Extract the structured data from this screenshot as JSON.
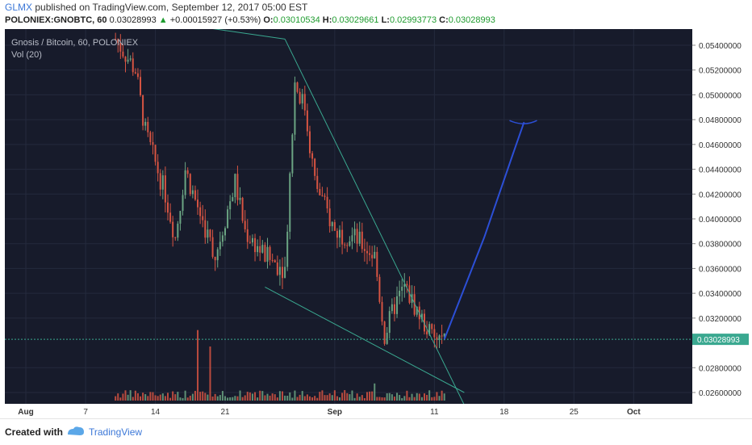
{
  "header": {
    "username": "GLMX",
    "published_text": "published on TradingView.com, September 12, 2017 05:00 EST",
    "symbol": "POLONIEX:GNOBTC, 60",
    "last": "0.03028993",
    "change_arrow": "▲",
    "change": "+0.00015927 (+0.53%)",
    "o_label": "O:",
    "o_value": "0.03010534",
    "h_label": "H:",
    "h_value": "0.03029661",
    "l_label": "L:",
    "l_value": "0.02993773",
    "c_label": "C:",
    "c_value": "0.03028993"
  },
  "legend": {
    "title": "Gnosis / Bitcoin, 60, POLONIEX",
    "indicator": "Vol (20)"
  },
  "footer": {
    "created_with": "Created with",
    "brand": "TradingView"
  },
  "colors": {
    "background": "#171b2b",
    "up": "#6ba583",
    "down": "#d75442",
    "trendline": "#3aa890",
    "drawing": "#2c4fd6",
    "last_price_label": "#3aa890"
  },
  "chart_data": {
    "type": "candlestick",
    "title": "Gnosis / Bitcoin, 60, POLONIEX",
    "ylim": [
      0.025,
      0.055
    ],
    "y_ticks": [
      "0.05400000",
      "0.05200000",
      "0.05000000",
      "0.04800000",
      "0.04600000",
      "0.04400000",
      "0.04200000",
      "0.04000000",
      "0.03800000",
      "0.03600000",
      "0.03400000",
      "0.03200000",
      "0.03028993",
      "0.02800000",
      "0.02600000"
    ],
    "x_ticks": [
      "Aug",
      "7",
      "14",
      "21",
      "Sep",
      "11",
      "18",
      "25",
      "Oct"
    ],
    "last_price": "0.03028993",
    "approx_close_path": [
      {
        "x": "Aug 10",
        "y": 0.0545
      },
      {
        "x": "Aug 12",
        "y": 0.052
      },
      {
        "x": "Aug 13",
        "y": 0.047
      },
      {
        "x": "Aug 15",
        "y": 0.042
      },
      {
        "x": "Aug 16",
        "y": 0.0385
      },
      {
        "x": "Aug 17",
        "y": 0.044
      },
      {
        "x": "Aug 18",
        "y": 0.0415
      },
      {
        "x": "Aug 20",
        "y": 0.037
      },
      {
        "x": "Aug 22",
        "y": 0.043
      },
      {
        "x": "Aug 23",
        "y": 0.039
      },
      {
        "x": "Aug 25",
        "y": 0.037
      },
      {
        "x": "Aug 27",
        "y": 0.036
      },
      {
        "x": "Aug 28",
        "y": 0.051
      },
      {
        "x": "Aug 29",
        "y": 0.049
      },
      {
        "x": "Aug 30",
        "y": 0.043
      },
      {
        "x": "Sep 1",
        "y": 0.039
      },
      {
        "x": "Sep 3",
        "y": 0.0385
      },
      {
        "x": "Sep 5",
        "y": 0.037
      },
      {
        "x": "Sep 6",
        "y": 0.0305
      },
      {
        "x": "Sep 7",
        "y": 0.033
      },
      {
        "x": "Sep 8",
        "y": 0.0345
      },
      {
        "x": "Sep 9",
        "y": 0.033
      },
      {
        "x": "Sep 10",
        "y": 0.0315
      },
      {
        "x": "Sep 11",
        "y": 0.0302
      },
      {
        "x": "Sep 12",
        "y": 0.0303
      }
    ],
    "projection_path": [
      {
        "x": "Sep 12",
        "y": 0.0303
      },
      {
        "x": "Sep 16",
        "y": 0.0385
      },
      {
        "x": "Sep 19",
        "y": 0.0455
      },
      {
        "x": "Sep 20",
        "y": 0.0478
      }
    ],
    "trendlines": [
      {
        "from": {
          "x": "Aug 25",
          "y": 0.0345
        },
        "to": {
          "x": "Sep 14",
          "y": 0.026
        }
      },
      {
        "from": {
          "x": "Aug 27",
          "y": 0.0545
        },
        "to": {
          "x": "Sep 14",
          "y": 0.025
        }
      },
      {
        "from": {
          "x": "Aug 14",
          "y": 0.056
        },
        "to": {
          "x": "Aug 27",
          "y": 0.0545
        }
      }
    ]
  }
}
